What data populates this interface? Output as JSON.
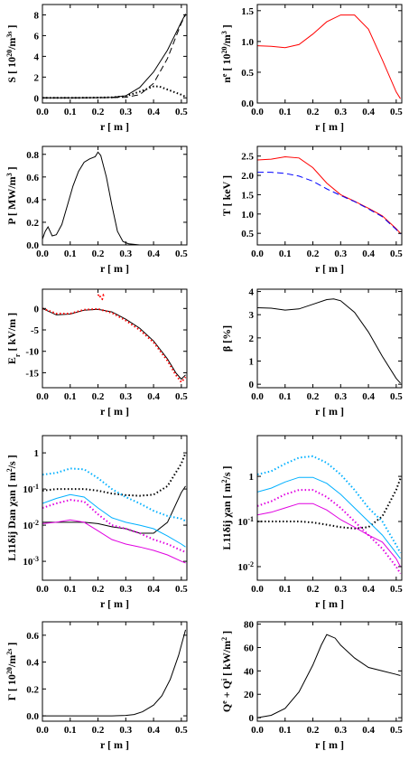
{
  "chart_data": [
    {
      "type": "line",
      "panel": "S",
      "ylabel": "S  [ 10^20/m^3s ]",
      "xlabel": "r  [ m ]",
      "xlim": [
        0,
        0.52
      ],
      "ylim": [
        -0.5,
        9
      ],
      "xticks": [
        "0.0",
        "0.1",
        "0.2",
        "0.3",
        "0.4",
        "0.5"
      ],
      "yticks": [
        "0",
        "2",
        "4",
        "6",
        "8"
      ],
      "ytick_values": [
        0,
        2,
        4,
        6,
        8
      ],
      "series": [
        {
          "color": "#000000",
          "dash": "solid",
          "x": [
            0,
            0.1,
            0.2,
            0.25,
            0.3,
            0.35,
            0.4,
            0.45,
            0.5,
            0.515
          ],
          "y": [
            0,
            0,
            0.02,
            0.05,
            0.2,
            1.0,
            2.5,
            4.6,
            7.3,
            8.1
          ]
        },
        {
          "color": "#000000",
          "dash": "dashed",
          "x": [
            0,
            0.1,
            0.2,
            0.25,
            0.3,
            0.35,
            0.4,
            0.45,
            0.5,
            0.515
          ],
          "y": [
            0,
            0,
            0.01,
            0.02,
            0.06,
            0.3,
            1.4,
            3.8,
            7.2,
            8.0
          ]
        },
        {
          "color": "#000000",
          "dash": "dotted",
          "x": [
            0,
            0.1,
            0.2,
            0.25,
            0.3,
            0.35,
            0.4,
            0.42,
            0.45,
            0.5,
            0.515
          ],
          "y": [
            0,
            0,
            0.02,
            0.05,
            0.15,
            0.6,
            1.1,
            1.1,
            0.8,
            0.3,
            0.1
          ]
        }
      ]
    },
    {
      "type": "line",
      "panel": "ne",
      "ylabel": "n^e  [ 10^20/m^3 ]",
      "xlabel": "r  [ m ]",
      "xlim": [
        0,
        0.52
      ],
      "ylim": [
        0,
        1.6
      ],
      "xticks": [
        "0.0",
        "0.1",
        "0.2",
        "0.3",
        "0.4",
        "0.5"
      ],
      "yticks": [
        "0.0",
        "0.5",
        "1.0",
        "1.5"
      ],
      "ytick_values": [
        0,
        0.5,
        1.0,
        1.5
      ],
      "series": [
        {
          "color": "#ff0000",
          "dash": "solid",
          "x": [
            0,
            0.05,
            0.1,
            0.15,
            0.2,
            0.25,
            0.3,
            0.35,
            0.4,
            0.45,
            0.5,
            0.515
          ],
          "y": [
            0.93,
            0.92,
            0.9,
            0.95,
            1.12,
            1.32,
            1.43,
            1.43,
            1.2,
            0.7,
            0.18,
            0.07
          ]
        }
      ]
    },
    {
      "type": "line",
      "panel": "P",
      "ylabel": "P  [ MW/m^3 ]",
      "xlabel": "r  [ m ]",
      "xlim": [
        0,
        0.52
      ],
      "ylim": [
        0,
        0.87
      ],
      "xticks": [
        "0.0",
        "0.1",
        "0.2",
        "0.3",
        "0.4",
        "0.5"
      ],
      "yticks": [
        "0.0",
        "0.2",
        "0.4",
        "0.6",
        "0.8"
      ],
      "ytick_values": [
        0,
        0.2,
        0.4,
        0.6,
        0.8
      ],
      "series": [
        {
          "color": "#000000",
          "dash": "solid",
          "x": [
            0,
            0.01,
            0.02,
            0.035,
            0.05,
            0.07,
            0.09,
            0.11,
            0.13,
            0.15,
            0.17,
            0.19,
            0.2,
            0.21,
            0.23,
            0.25,
            0.27,
            0.29,
            0.31,
            0.35,
            0.4,
            0.45,
            0.5,
            0.515
          ],
          "y": [
            0.05,
            0.12,
            0.16,
            0.08,
            0.09,
            0.18,
            0.35,
            0.52,
            0.65,
            0.73,
            0.76,
            0.78,
            0.82,
            0.79,
            0.6,
            0.35,
            0.12,
            0.03,
            0.01,
            0,
            0,
            0,
            0,
            0
          ]
        }
      ]
    },
    {
      "type": "line",
      "panel": "T",
      "ylabel": "T  [ keV ]",
      "xlabel": "r  [ m ]",
      "xlim": [
        0,
        0.52
      ],
      "ylim": [
        0.2,
        2.75
      ],
      "xticks": [
        "0.0",
        "0.1",
        "0.2",
        "0.3",
        "0.4",
        "0.5"
      ],
      "yticks": [
        "0.5",
        "1.0",
        "1.5",
        "2.0",
        "2.5"
      ],
      "ytick_values": [
        0.5,
        1.0,
        1.5,
        2.0,
        2.5
      ],
      "series": [
        {
          "color": "#ff0000",
          "dash": "solid",
          "x": [
            0,
            0.05,
            0.1,
            0.15,
            0.2,
            0.25,
            0.3,
            0.35,
            0.4,
            0.45,
            0.5,
            0.515
          ],
          "y": [
            2.4,
            2.42,
            2.48,
            2.45,
            2.2,
            1.8,
            1.5,
            1.33,
            1.15,
            0.95,
            0.62,
            0.5
          ]
        },
        {
          "color": "#0000ff",
          "dash": "dashed",
          "x": [
            0,
            0.05,
            0.1,
            0.15,
            0.2,
            0.25,
            0.3,
            0.35,
            0.4,
            0.45,
            0.5,
            0.515
          ],
          "y": [
            2.08,
            2.08,
            2.05,
            1.98,
            1.85,
            1.65,
            1.48,
            1.32,
            1.13,
            0.93,
            0.6,
            0.48
          ]
        }
      ]
    },
    {
      "type": "line",
      "panel": "Er",
      "ylabel": "E_r  [ kV/m ]",
      "xlabel": "r  [ m ]",
      "xlim": [
        0,
        0.52
      ],
      "ylim": [
        -18.5,
        4.5
      ],
      "xticks": [
        "0.0",
        "0.1",
        "0.2",
        "0.3",
        "0.4",
        "0.5"
      ],
      "yticks": [
        "0",
        "-5",
        "-10",
        "-15"
      ],
      "ytick_values": [
        0,
        -5,
        -10,
        -15
      ],
      "series": [
        {
          "color": "#000000",
          "dash": "solid",
          "x": [
            0,
            0.05,
            0.1,
            0.15,
            0.2,
            0.25,
            0.3,
            0.35,
            0.4,
            0.45,
            0.48,
            0.5,
            0.515
          ],
          "y": [
            0,
            -1.5,
            -1.3,
            -0.4,
            -0.2,
            -0.8,
            -2.5,
            -4.6,
            -7.6,
            -11.8,
            -15,
            -16.5,
            -15.5
          ]
        },
        {
          "color": "#ff0000",
          "dash": "dotted",
          "x": [
            0,
            0.05,
            0.1,
            0.15,
            0.2,
            0.25,
            0.3,
            0.35,
            0.4,
            0.45,
            0.48,
            0.5,
            0.515
          ],
          "y": [
            0,
            -1.2,
            -1.2,
            -0.3,
            -0.1,
            -1.0,
            -2.8,
            -5.0,
            -7.9,
            -12.2,
            -15.5,
            -17.2,
            -16
          ]
        },
        {
          "color": "#ff0000",
          "dash": "dotted",
          "x": [
            0.2,
            0.205,
            0.21,
            0.215,
            0.22,
            0.225
          ],
          "y": [
            3.0,
            3.3,
            2.4,
            2.2,
            3.2,
            3.1
          ]
        }
      ]
    },
    {
      "type": "line",
      "panel": "beta",
      "ylabel": "β  [%]",
      "xlabel": "r  [ m ]",
      "xlim": [
        0,
        0.52
      ],
      "ylim": [
        -0.15,
        4.1
      ],
      "xticks": [
        "0.0",
        "0.1",
        "0.2",
        "0.3",
        "0.4",
        "0.5"
      ],
      "yticks": [
        "0",
        "1",
        "2",
        "3",
        "4"
      ],
      "ytick_values": [
        0,
        1,
        2,
        3,
        4
      ],
      "series": [
        {
          "color": "#000000",
          "dash": "solid",
          "x": [
            0,
            0.05,
            0.1,
            0.15,
            0.2,
            0.25,
            0.275,
            0.3,
            0.35,
            0.4,
            0.45,
            0.5,
            0.515
          ],
          "y": [
            3.3,
            3.28,
            3.2,
            3.25,
            3.45,
            3.65,
            3.68,
            3.6,
            3.1,
            2.25,
            1.2,
            0.25,
            0.05
          ]
        }
      ]
    },
    {
      "type": "line",
      "panel": "D",
      "yscale": "log",
      "ylabel": "L11δij  Dan  χan  [ m^2/s ]",
      "xlabel": "r  [ m ]",
      "xlim": [
        0,
        0.52
      ],
      "ylim": [
        0.0003,
        3
      ],
      "xticks": [
        "0.0",
        "0.1",
        "0.2",
        "0.3",
        "0.4",
        "0.5"
      ],
      "yticks": [
        "10^-3",
        "10^-2",
        "10^-1",
        "1"
      ],
      "ytick_values": [
        0.001,
        0.01,
        0.1,
        1
      ],
      "series": [
        {
          "color": "#000000",
          "dash": "dotted",
          "x": [
            0,
            0.05,
            0.1,
            0.15,
            0.2,
            0.25,
            0.3,
            0.35,
            0.4,
            0.45,
            0.5,
            0.515
          ],
          "y": [
            0.09,
            0.1,
            0.1,
            0.1,
            0.09,
            0.075,
            0.068,
            0.065,
            0.07,
            0.12,
            0.5,
            1.0
          ]
        },
        {
          "color": "#000000",
          "dash": "solid",
          "x": [
            0,
            0.05,
            0.1,
            0.15,
            0.2,
            0.25,
            0.3,
            0.35,
            0.4,
            0.45,
            0.5,
            0.515
          ],
          "y": [
            0.012,
            0.012,
            0.012,
            0.012,
            0.011,
            0.009,
            0.008,
            0.006,
            0.006,
            0.012,
            0.08,
            0.12
          ]
        },
        {
          "color": "#00b0ff",
          "dash": "dotted",
          "x": [
            0,
            0.05,
            0.1,
            0.15,
            0.2,
            0.25,
            0.3,
            0.35,
            0.4,
            0.45,
            0.5,
            0.515
          ],
          "y": [
            0.25,
            0.28,
            0.37,
            0.35,
            0.2,
            0.1,
            0.06,
            0.04,
            0.025,
            0.018,
            0.015,
            0.013
          ]
        },
        {
          "color": "#00b0ff",
          "dash": "solid",
          "x": [
            0,
            0.05,
            0.1,
            0.15,
            0.2,
            0.25,
            0.3,
            0.35,
            0.4,
            0.45,
            0.5,
            0.515
          ],
          "y": [
            0.04,
            0.055,
            0.07,
            0.06,
            0.03,
            0.016,
            0.012,
            0.01,
            0.008,
            0.005,
            0.003,
            0.0025
          ]
        },
        {
          "color": "#e000e0",
          "dash": "dotted",
          "x": [
            0,
            0.05,
            0.1,
            0.15,
            0.2,
            0.25,
            0.3,
            0.35,
            0.4,
            0.45,
            0.5,
            0.515
          ],
          "y": [
            0.03,
            0.04,
            0.05,
            0.045,
            0.02,
            0.01,
            0.008,
            0.006,
            0.004,
            0.003,
            0.002,
            0.0018
          ]
        },
        {
          "color": "#e000e0",
          "dash": "solid",
          "x": [
            0,
            0.05,
            0.1,
            0.15,
            0.2,
            0.25,
            0.3,
            0.35,
            0.4,
            0.45,
            0.5,
            0.515
          ],
          "y": [
            0.011,
            0.012,
            0.014,
            0.012,
            0.007,
            0.004,
            0.003,
            0.0025,
            0.002,
            0.0015,
            0.001,
            0.0009
          ]
        }
      ]
    },
    {
      "type": "line",
      "panel": "chi",
      "yscale": "log",
      "ylabel": "L11δij  χan  [ m^2/s ]",
      "xlabel": "r  [ m ]",
      "xlim": [
        0,
        0.52
      ],
      "ylim": [
        0.005,
        8
      ],
      "xticks": [
        "0.0",
        "0.1",
        "0.2",
        "0.3",
        "0.4",
        "0.5"
      ],
      "yticks": [
        "10^-2",
        "10^-1",
        "1"
      ],
      "ytick_values": [
        0.01,
        0.1,
        1
      ],
      "series": [
        {
          "color": "#000000",
          "dash": "dotted",
          "x": [
            0,
            0.05,
            0.1,
            0.15,
            0.2,
            0.25,
            0.3,
            0.35,
            0.4,
            0.45,
            0.5,
            0.515
          ],
          "y": [
            0.1,
            0.1,
            0.1,
            0.1,
            0.095,
            0.085,
            0.075,
            0.07,
            0.075,
            0.13,
            0.5,
            0.9
          ]
        },
        {
          "color": "#00b0ff",
          "dash": "dotted",
          "x": [
            0,
            0.05,
            0.1,
            0.15,
            0.2,
            0.25,
            0.3,
            0.35,
            0.4,
            0.45,
            0.5,
            0.515
          ],
          "y": [
            1.1,
            1.3,
            1.9,
            2.6,
            2.8,
            2.0,
            1.1,
            0.5,
            0.2,
            0.1,
            0.03,
            0.02
          ]
        },
        {
          "color": "#00b0ff",
          "dash": "solid",
          "x": [
            0,
            0.05,
            0.1,
            0.15,
            0.2,
            0.25,
            0.3,
            0.35,
            0.4,
            0.45,
            0.5,
            0.515
          ],
          "y": [
            0.45,
            0.55,
            0.75,
            0.95,
            0.95,
            0.7,
            0.4,
            0.2,
            0.1,
            0.05,
            0.02,
            0.015
          ]
        },
        {
          "color": "#e000e0",
          "dash": "dotted",
          "x": [
            0,
            0.05,
            0.1,
            0.15,
            0.2,
            0.25,
            0.3,
            0.35,
            0.4,
            0.45,
            0.5,
            0.515
          ],
          "y": [
            0.22,
            0.28,
            0.4,
            0.5,
            0.5,
            0.35,
            0.2,
            0.1,
            0.05,
            0.025,
            0.01,
            0.007
          ]
        },
        {
          "color": "#e000e0",
          "dash": "solid",
          "x": [
            0,
            0.05,
            0.1,
            0.15,
            0.2,
            0.25,
            0.3,
            0.35,
            0.4,
            0.45,
            0.5,
            0.515
          ],
          "y": [
            0.14,
            0.16,
            0.2,
            0.25,
            0.25,
            0.18,
            0.11,
            0.075,
            0.05,
            0.035,
            0.015,
            0.01
          ]
        }
      ]
    },
    {
      "type": "line",
      "panel": "Gamma",
      "ylabel": "Γ  [ 10^20/m^2s ]",
      "xlabel": "r  [ m ]",
      "xlim": [
        0,
        0.52
      ],
      "ylim": [
        -0.04,
        0.7
      ],
      "xticks": [
        "0.0",
        "0.1",
        "0.2",
        "0.3",
        "0.4",
        "0.5"
      ],
      "yticks": [
        "0.0",
        "0.2",
        "0.4",
        "0.6"
      ],
      "ytick_values": [
        0,
        0.2,
        0.4,
        0.6
      ],
      "series": [
        {
          "color": "#000000",
          "dash": "solid",
          "x": [
            0,
            0.1,
            0.2,
            0.25,
            0.3,
            0.33,
            0.36,
            0.4,
            0.43,
            0.46,
            0.49,
            0.515
          ],
          "y": [
            0,
            0,
            0,
            0,
            0.003,
            0.01,
            0.03,
            0.08,
            0.15,
            0.27,
            0.45,
            0.64
          ]
        }
      ]
    },
    {
      "type": "line",
      "panel": "Q",
      "ylabel": "Q^e + Q^i  [ kW/m^2 ]",
      "xlabel": "r  [ m ]",
      "xlim": [
        0,
        0.52
      ],
      "ylim": [
        -3,
        82
      ],
      "xticks": [
        "0.0",
        "0.1",
        "0.2",
        "0.3",
        "0.4",
        "0.5"
      ],
      "yticks": [
        "0",
        "20",
        "40",
        "60",
        "80"
      ],
      "ytick_values": [
        0,
        20,
        40,
        60,
        80
      ],
      "series": [
        {
          "color": "#000000",
          "dash": "solid",
          "x": [
            0,
            0.05,
            0.1,
            0.15,
            0.2,
            0.23,
            0.25,
            0.28,
            0.3,
            0.35,
            0.4,
            0.45,
            0.5,
            0.515
          ],
          "y": [
            0,
            2,
            8,
            22,
            45,
            62,
            71,
            68,
            62,
            51,
            43,
            40,
            37,
            36
          ]
        }
      ]
    }
  ]
}
